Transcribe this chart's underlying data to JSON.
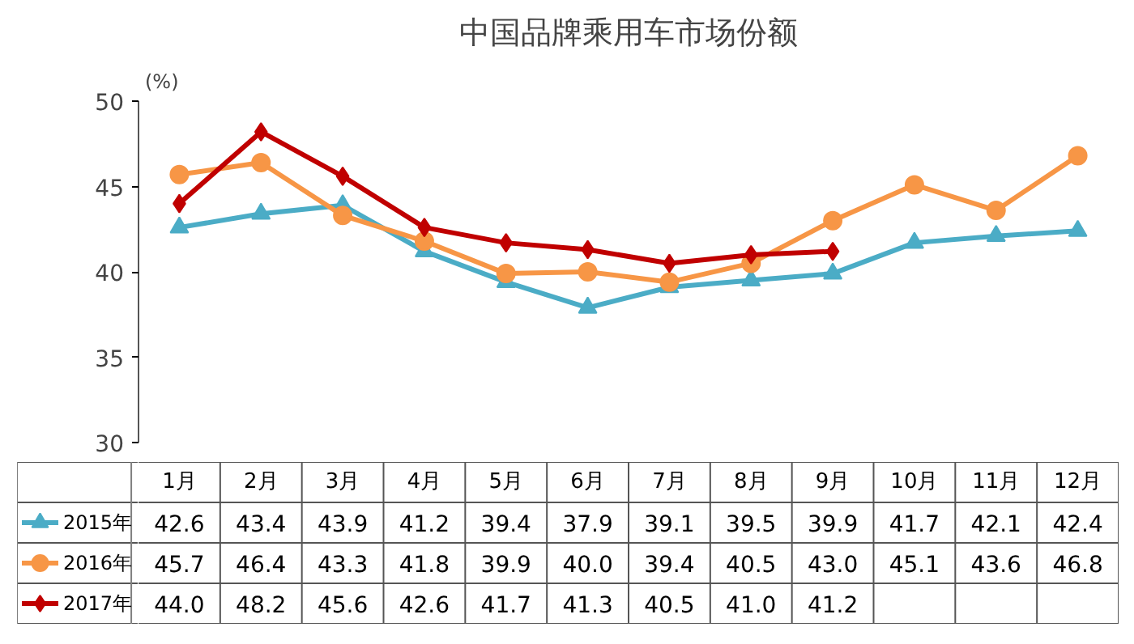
{
  "chart_data": {
    "type": "line",
    "title": "中国品牌乘用车市场份额",
    "ylabel": "(%)",
    "categories": [
      "1月",
      "2月",
      "3月",
      "4月",
      "5月",
      "6月",
      "7月",
      "8月",
      "9月",
      "10月",
      "11月",
      "12月"
    ],
    "ylim": [
      30,
      50
    ],
    "yticks": [
      30,
      35,
      40,
      45,
      50
    ],
    "grid": false,
    "legend": "bottom",
    "line_style": "solid",
    "series": [
      {
        "name": "2015年",
        "color": "#4bacc6",
        "marker": "triangle",
        "values": [
          42.6,
          43.4,
          43.9,
          41.2,
          39.4,
          37.9,
          39.1,
          39.5,
          39.9,
          41.7,
          42.1,
          42.4
        ],
        "value_labels": [
          "42.6",
          "43.4",
          "43.9",
          "41.2",
          "39.4",
          "37.9",
          "39.1",
          "39.5",
          "39.9",
          "41.7",
          "42.1",
          "42.4"
        ]
      },
      {
        "name": "2016年",
        "color": "#f79646",
        "marker": "circle",
        "values": [
          45.7,
          46.4,
          43.3,
          41.8,
          39.9,
          40.0,
          39.4,
          40.5,
          43.0,
          45.1,
          43.6,
          46.8
        ],
        "value_labels": [
          "45.7",
          "46.4",
          "43.3",
          "41.8",
          "39.9",
          "40.0",
          "39.4",
          "40.5",
          "43.0",
          "45.1",
          "43.6",
          "46.8"
        ]
      },
      {
        "name": "2017年",
        "color": "#c00000",
        "marker": "diamond",
        "values": [
          44.0,
          48.2,
          45.6,
          42.6,
          41.7,
          41.3,
          40.5,
          41.0,
          41.2,
          null,
          null,
          null
        ],
        "value_labels": [
          "44.0",
          "48.2",
          "45.6",
          "42.6",
          "41.7",
          "41.3",
          "40.5",
          "41.0",
          "41.2",
          null,
          null,
          null
        ]
      }
    ]
  }
}
